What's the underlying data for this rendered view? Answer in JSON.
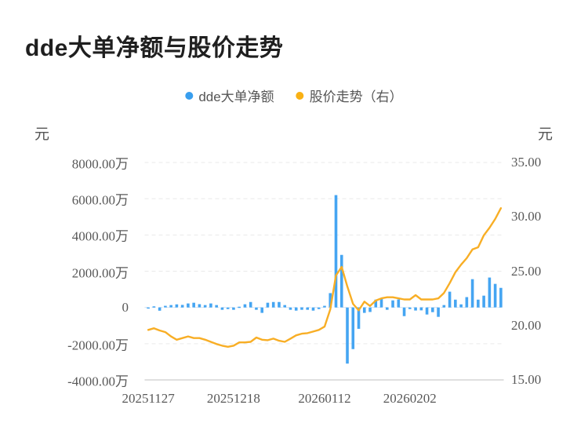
{
  "title": "dde大单净额与股价走势",
  "legend": [
    {
      "label": "dde大单净额",
      "color": "#389EEE"
    },
    {
      "label": "股价走势（右）",
      "color": "#F9B114"
    }
  ],
  "left_axis": {
    "unit": "元",
    "tick_labels": [
      "8000.00万",
      "6000.00万",
      "4000.00万",
      "2000.00万",
      "0",
      "-2000.00万",
      "-4000.00万"
    ]
  },
  "right_axis": {
    "unit": "元",
    "tick_labels": [
      "35.00",
      "30.00",
      "25.00",
      "20.00",
      "15.00"
    ]
  },
  "x_axis": {
    "tick_labels": [
      "20251127",
      "20251218",
      "20260112",
      "20260202"
    ],
    "tick_indices": [
      0,
      15,
      31,
      46
    ]
  },
  "chart_data": {
    "type": "bar+line",
    "title": "dde大单净额与股价走势",
    "x": [
      "20251127",
      "20251128",
      "20251201",
      "20251202",
      "20251203",
      "20251204",
      "20251205",
      "20251208",
      "20251209",
      "20251210",
      "20251211",
      "20251212",
      "20251215",
      "20251216",
      "20251217",
      "20251218",
      "20251219",
      "20251222",
      "20251223",
      "20251224",
      "20251225",
      "20251226",
      "20251229",
      "20251230",
      "20251231",
      "20260102",
      "20260105",
      "20260106",
      "20260107",
      "20260108",
      "20260109",
      "20260112",
      "20260113",
      "20260114",
      "20260115",
      "20260116",
      "20260119",
      "20260120",
      "20260121",
      "20260122",
      "20260123",
      "20260126",
      "20260127",
      "20260128",
      "20260129",
      "20260130",
      "20260202",
      "20260203",
      "20260204",
      "20260205",
      "20260206",
      "20260209",
      "20260210",
      "20260211",
      "20260212",
      "20260213",
      "20260216",
      "20260217",
      "20260218",
      "20260219",
      "20260220",
      "20260223",
      "20260224"
    ],
    "series": [
      {
        "name": "dde大单净额",
        "type": "bar",
        "axis": "left",
        "unit": "万元",
        "color": "#45A5F2",
        "values": [
          -60,
          60,
          -180,
          90,
          130,
          170,
          140,
          220,
          260,
          180,
          130,
          220,
          130,
          -130,
          -90,
          -130,
          40,
          175,
          300,
          -130,
          -300,
          260,
          300,
          300,
          130,
          -130,
          -175,
          -130,
          -130,
          -175,
          -90,
          90,
          790,
          6200,
          2900,
          -3100,
          -2300,
          -1180,
          -300,
          -250,
          430,
          520,
          -130,
          390,
          440,
          -480,
          -90,
          -170,
          -160,
          -390,
          -260,
          -520,
          130,
          870,
          430,
          170,
          570,
          1560,
          430,
          650,
          1650,
          1300,
          1080
        ]
      },
      {
        "name": "股价走势（右）",
        "type": "line",
        "axis": "right",
        "unit": "元",
        "color": "#F8AE25",
        "values": [
          19.6,
          19.75,
          19.55,
          19.4,
          19.0,
          18.7,
          18.85,
          19.0,
          18.85,
          18.85,
          18.7,
          18.5,
          18.3,
          18.15,
          18.05,
          18.15,
          18.45,
          18.45,
          18.5,
          18.9,
          18.7,
          18.65,
          18.8,
          18.6,
          18.5,
          18.8,
          19.1,
          19.25,
          19.3,
          19.45,
          19.6,
          19.9,
          21.5,
          24.6,
          25.4,
          23.6,
          22.0,
          21.4,
          22.2,
          21.8,
          22.3,
          22.5,
          22.6,
          22.6,
          22.5,
          22.4,
          22.4,
          22.8,
          22.4,
          22.4,
          22.4,
          22.5,
          23.0,
          23.9,
          24.9,
          25.6,
          26.2,
          27.0,
          27.2,
          28.3,
          29.0,
          29.8,
          30.8
        ]
      }
    ],
    "left_ylim_wan": [
      -4000,
      8000
    ],
    "left_tick_values_wan": [
      8000,
      6000,
      4000,
      2000,
      0,
      -2000,
      -4000
    ],
    "right_ylim": [
      15,
      35
    ],
    "right_tick_values": [
      35,
      30,
      25,
      20,
      15
    ],
    "grid": "dashed-horizontal",
    "legend_position": "top-center",
    "colors": {
      "grid": "#e9e9e9",
      "zero_line": "#d3e2f2",
      "axis_line": "#cccccc",
      "tick_text": "#595959"
    }
  }
}
